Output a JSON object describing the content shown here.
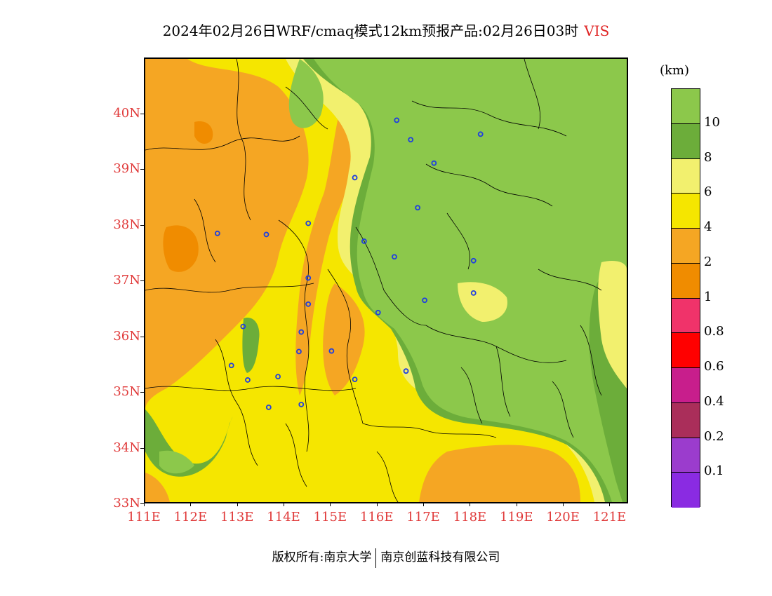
{
  "title": {
    "text": "2024年02月26日WRF/cmaq模式12km预报产品:02月26日03时",
    "variable": "VIS"
  },
  "map": {
    "lat_ticks": [
      "40N",
      "39N",
      "38N",
      "37N",
      "36N",
      "35N",
      "34N",
      "33N"
    ],
    "lon_ticks": [
      "111E",
      "112E",
      "113E",
      "114E",
      "115E",
      "116E",
      "117E",
      "118E",
      "119E",
      "120E",
      "121E"
    ],
    "lat_range": [
      33,
      41.0
    ],
    "lon_range": [
      111,
      121.4
    ],
    "field_colors": {
      "orange_2_4": "#f5a623",
      "yellow_4_6": "#f5e600",
      "lightyellow_6_8": "#f2f06e",
      "darkgreen_8_10": "#6cad3a",
      "green_gt10": "#8cc84b",
      "deeporange_1_2": "#f08c00"
    },
    "stations": [
      [
        116.4,
        39.9
      ],
      [
        116.7,
        39.55
      ],
      [
        118.2,
        39.65
      ],
      [
        117.2,
        39.13
      ],
      [
        115.5,
        38.87
      ],
      [
        116.85,
        38.33
      ],
      [
        112.55,
        37.87
      ],
      [
        113.6,
        37.85
      ],
      [
        114.5,
        38.05
      ],
      [
        115.7,
        37.73
      ],
      [
        116.35,
        37.45
      ],
      [
        118.05,
        37.38
      ],
      [
        118.05,
        36.8
      ],
      [
        117.0,
        36.67
      ],
      [
        114.5,
        37.07
      ],
      [
        114.5,
        36.6
      ],
      [
        116.0,
        36.45
      ],
      [
        113.1,
        36.2
      ],
      [
        114.35,
        36.1
      ],
      [
        114.3,
        35.75
      ],
      [
        115.0,
        35.76
      ],
      [
        112.85,
        35.5
      ],
      [
        113.2,
        35.24
      ],
      [
        113.85,
        35.3
      ],
      [
        115.5,
        35.25
      ],
      [
        116.6,
        35.4
      ],
      [
        114.35,
        34.8
      ],
      [
        113.65,
        34.75
      ]
    ]
  },
  "colorbar": {
    "unit": "(km)",
    "levels": [
      {
        "label": "10",
        "color": "#8cc84b"
      },
      {
        "label": "8",
        "color": "#6cad3a"
      },
      {
        "label": "6",
        "color": "#f2f06e"
      },
      {
        "label": "4",
        "color": "#f5e600"
      },
      {
        "label": "2",
        "color": "#f5a623"
      },
      {
        "label": "1",
        "color": "#f08c00"
      },
      {
        "label": "0.8",
        "color": "#f0336a"
      },
      {
        "label": "0.6",
        "color": "#ff0000"
      },
      {
        "label": "0.4",
        "color": "#c81e8c"
      },
      {
        "label": "0.2",
        "color": "#aa2e5a"
      },
      {
        "label": "0.1",
        "color": "#9b3ccd"
      },
      {
        "label": "",
        "color": "#8a2be2"
      }
    ]
  },
  "copyright": {
    "left": "版权所有:南京大学",
    "right": "南京创蓝科技有限公司"
  }
}
